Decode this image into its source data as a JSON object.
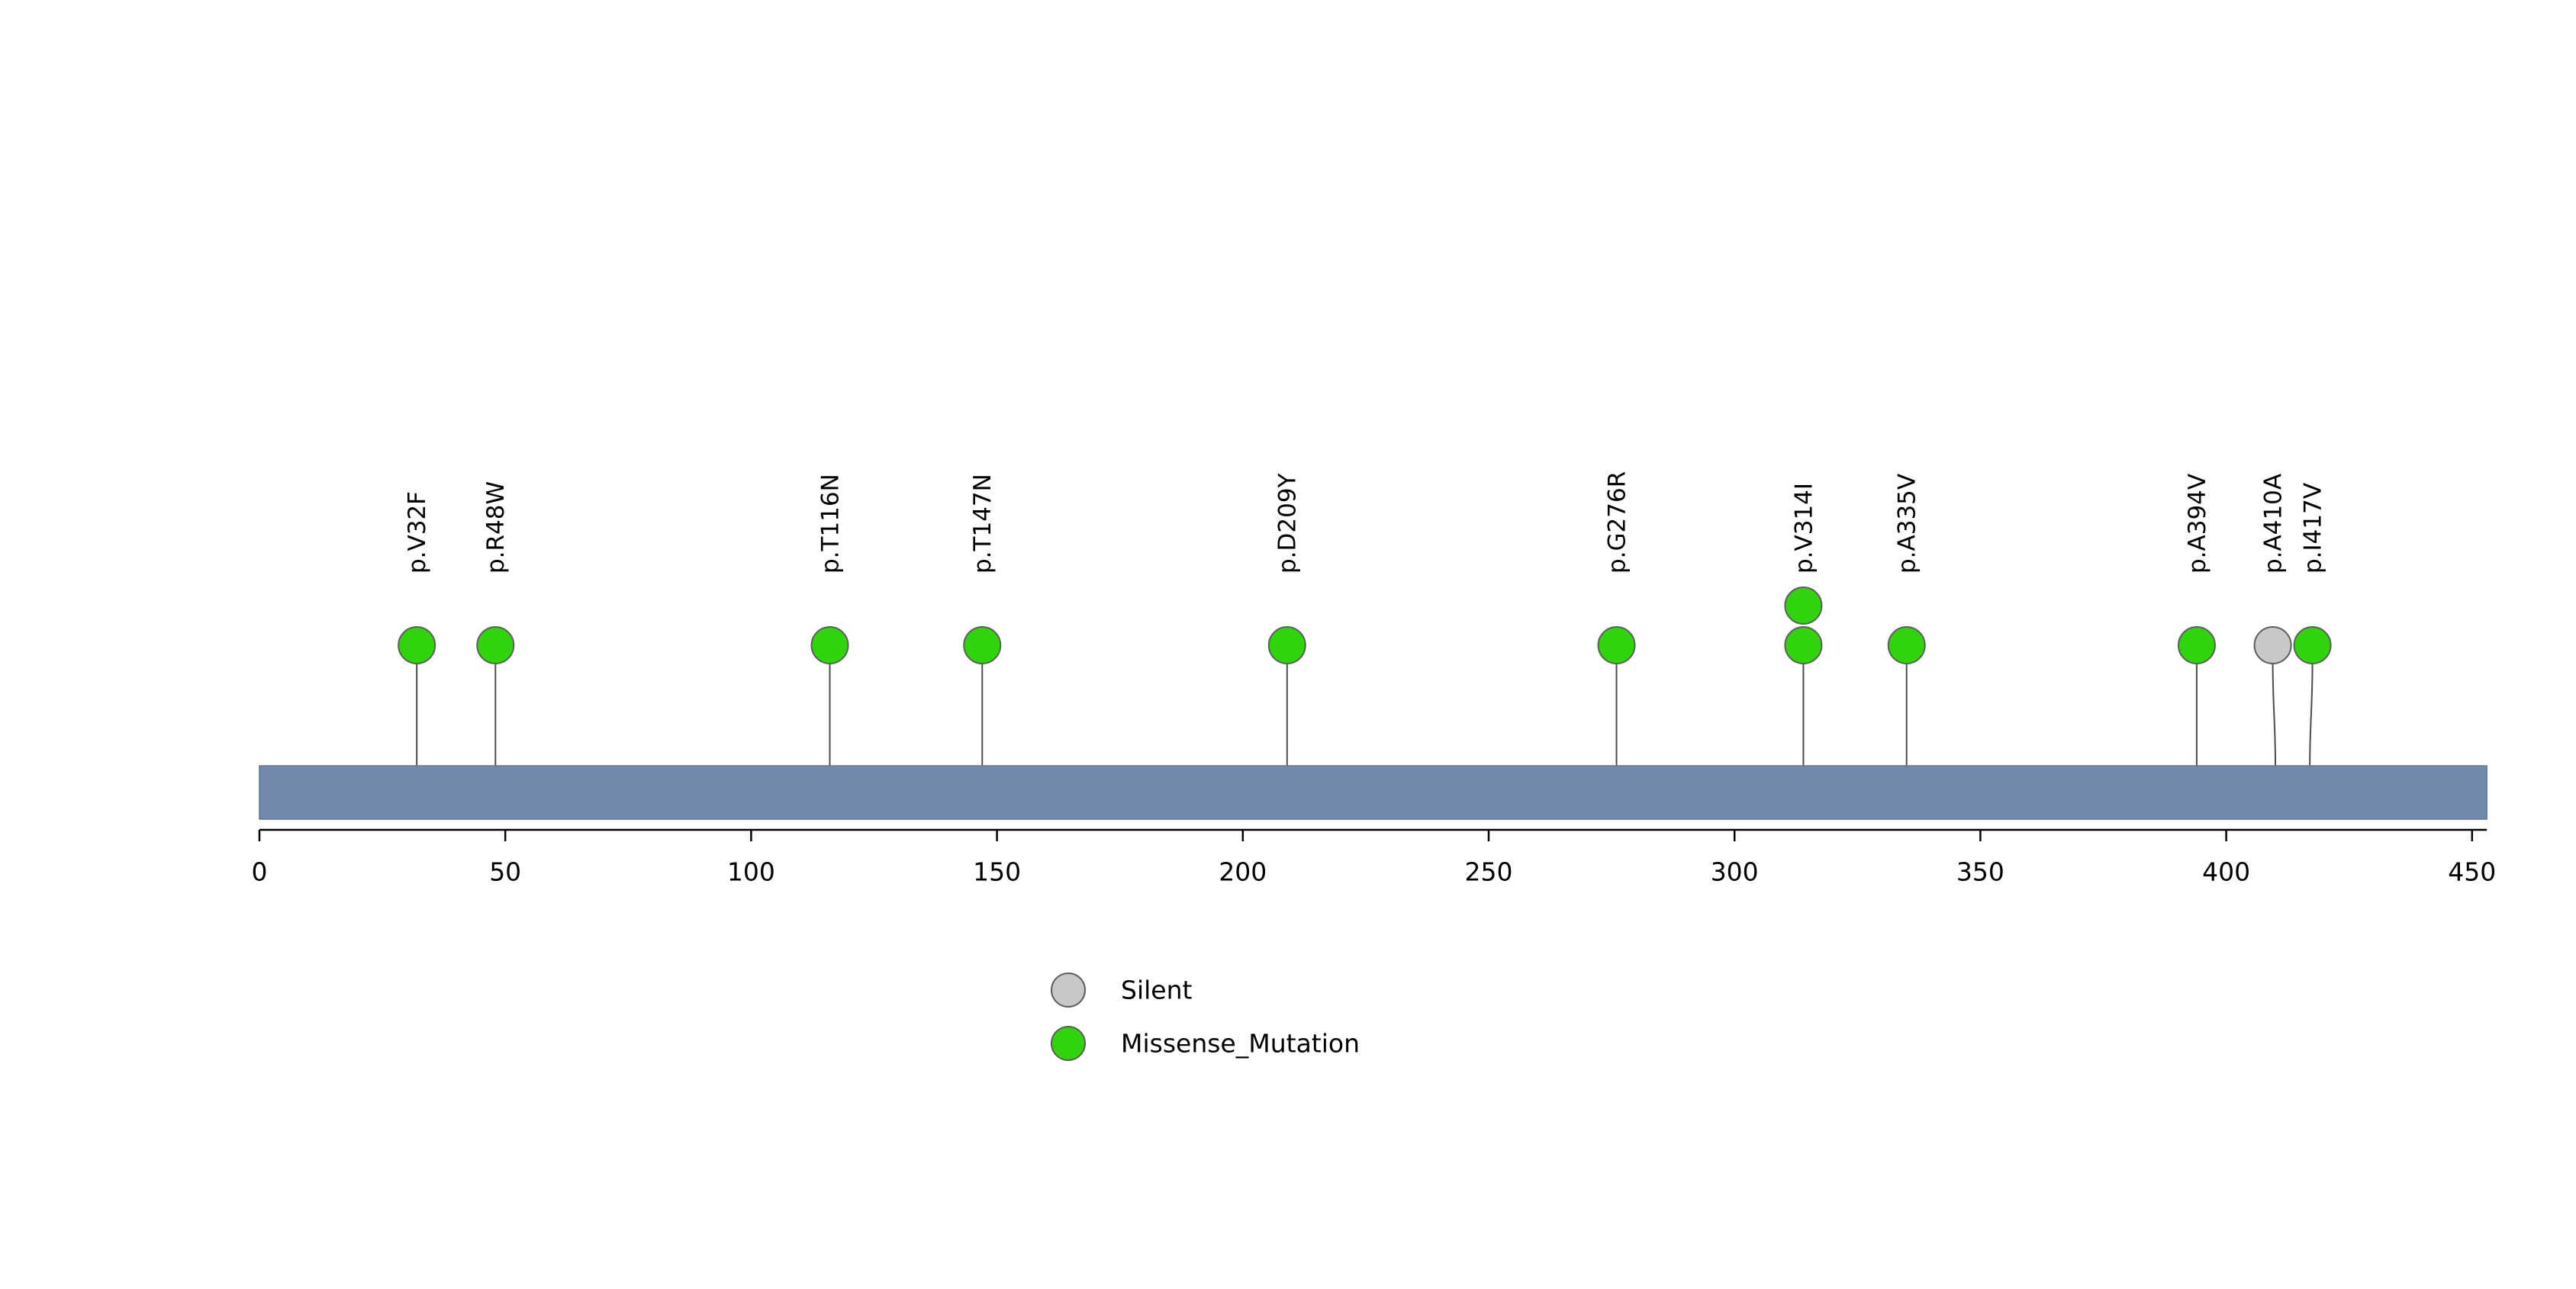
{
  "chart_data": {
    "type": "lollipop",
    "title": "",
    "xlabel": "",
    "ylabel": "",
    "xlim": [
      0,
      453
    ],
    "x_ticks": [
      0,
      50,
      100,
      150,
      200,
      250,
      300,
      350,
      400,
      450
    ],
    "protein": {
      "start": 0,
      "end": 453,
      "backbone_color": "#7289ab"
    },
    "style": {
      "stem_color": "#4d4d4d",
      "circle_stroke": "#5e5e5e",
      "axis_color": "#000000",
      "grid": false,
      "legend_position": "bottom-left"
    },
    "mutations": [
      {
        "label": "p.V32F",
        "position": 32,
        "count": 1,
        "type": "Missense_Mutation"
      },
      {
        "label": "p.R48W",
        "position": 48,
        "count": 1,
        "type": "Missense_Mutation"
      },
      {
        "label": "p.T116N",
        "position": 116,
        "count": 1,
        "type": "Missense_Mutation"
      },
      {
        "label": "p.T147N",
        "position": 147,
        "count": 1,
        "type": "Missense_Mutation"
      },
      {
        "label": "p.D209Y",
        "position": 209,
        "count": 1,
        "type": "Missense_Mutation"
      },
      {
        "label": "p.G276R",
        "position": 276,
        "count": 1,
        "type": "Missense_Mutation"
      },
      {
        "label": "p.V314I",
        "position": 314,
        "count": 2,
        "type": "Missense_Mutation"
      },
      {
        "label": "p.A335V",
        "position": 335,
        "count": 1,
        "type": "Missense_Mutation"
      },
      {
        "label": "p.A394V",
        "position": 394,
        "count": 1,
        "type": "Missense_Mutation"
      },
      {
        "label": "p.A410A",
        "position": 410,
        "count": 1,
        "type": "Silent"
      },
      {
        "label": "p.I417V",
        "position": 417,
        "count": 1,
        "type": "Missense_Mutation"
      }
    ],
    "mutation_type_colors": {
      "Silent": "#c8c8c8",
      "Missense_Mutation": "#2fd40a"
    },
    "legend": [
      {
        "label": "Silent",
        "color": "#c8c8c8"
      },
      {
        "label": "Missense_Mutation",
        "color": "#2fd40a"
      }
    ]
  }
}
